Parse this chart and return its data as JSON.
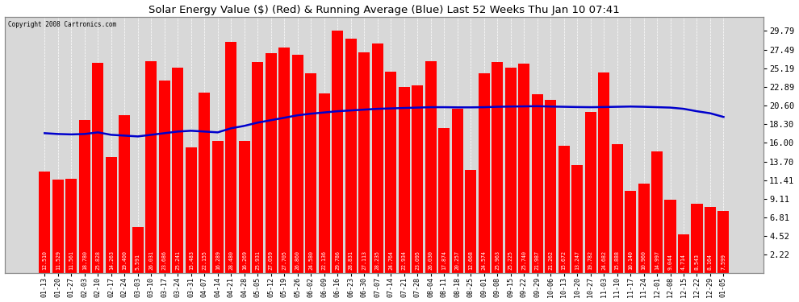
{
  "title": "Solar Energy Value ($) (Red) & Running Average (Blue) Last 52 Weeks Thu Jan 10 07:41",
  "copyright": "Copyright 2008 Cartronics.com",
  "bar_color": "#ff0000",
  "line_color": "#0000cc",
  "bg_color": "#ffffff",
  "plot_bg_color": "#d8d8d8",
  "grid_color": "#ffffff",
  "yticks_right": [
    2.22,
    4.52,
    6.81,
    9.11,
    11.41,
    13.7,
    16.0,
    18.3,
    20.6,
    22.89,
    25.19,
    27.49,
    29.79
  ],
  "ymax": 31.5,
  "categories": [
    "01-13",
    "01-20",
    "01-27",
    "02-03",
    "02-10",
    "02-17",
    "02-24",
    "03-03",
    "03-10",
    "03-17",
    "03-24",
    "03-31",
    "04-07",
    "04-14",
    "04-21",
    "04-28",
    "05-05",
    "05-12",
    "05-19",
    "05-26",
    "06-02",
    "06-09",
    "06-16",
    "06-23",
    "06-30",
    "07-07",
    "07-14",
    "07-21",
    "07-28",
    "08-04",
    "08-11",
    "08-18",
    "08-25",
    "09-01",
    "09-08",
    "09-15",
    "09-22",
    "09-29",
    "10-06",
    "10-13",
    "10-20",
    "10-27",
    "11-03",
    "11-10",
    "11-17",
    "11-24",
    "12-01",
    "12-08",
    "12-15",
    "12-22",
    "12-29",
    "01-05"
  ],
  "bar_values": [
    12.51,
    11.529,
    11.561,
    18.78,
    25.828,
    14.263,
    19.4,
    5.591,
    26.031,
    23.686,
    25.241,
    15.483,
    22.155,
    16.289,
    28.48,
    16.269,
    25.931,
    27.059,
    27.705,
    26.86,
    24.58,
    22.136,
    29.786,
    28.831,
    27.113,
    28.235,
    24.764,
    22.934,
    23.095,
    26.03,
    17.874,
    20.257,
    12.668,
    24.574,
    25.963,
    25.225,
    25.74,
    21.987,
    21.262,
    15.672,
    13.247,
    19.782,
    24.682,
    15.888,
    10.14,
    10.96,
    14.997,
    9.044,
    4.714,
    8.543,
    8.164,
    7.599
  ],
  "running_avg": [
    17.2,
    17.1,
    17.05,
    17.1,
    17.3,
    17.0,
    16.9,
    16.8,
    17.0,
    17.2,
    17.4,
    17.5,
    17.4,
    17.3,
    17.8,
    18.1,
    18.5,
    18.8,
    19.1,
    19.4,
    19.6,
    19.75,
    19.9,
    20.0,
    20.1,
    20.2,
    20.25,
    20.3,
    20.35,
    20.4,
    20.4,
    20.38,
    20.38,
    20.4,
    20.45,
    20.48,
    20.5,
    20.52,
    20.48,
    20.45,
    20.42,
    20.4,
    20.42,
    20.45,
    20.48,
    20.45,
    20.4,
    20.35,
    20.2,
    19.9,
    19.65,
    19.2
  ]
}
